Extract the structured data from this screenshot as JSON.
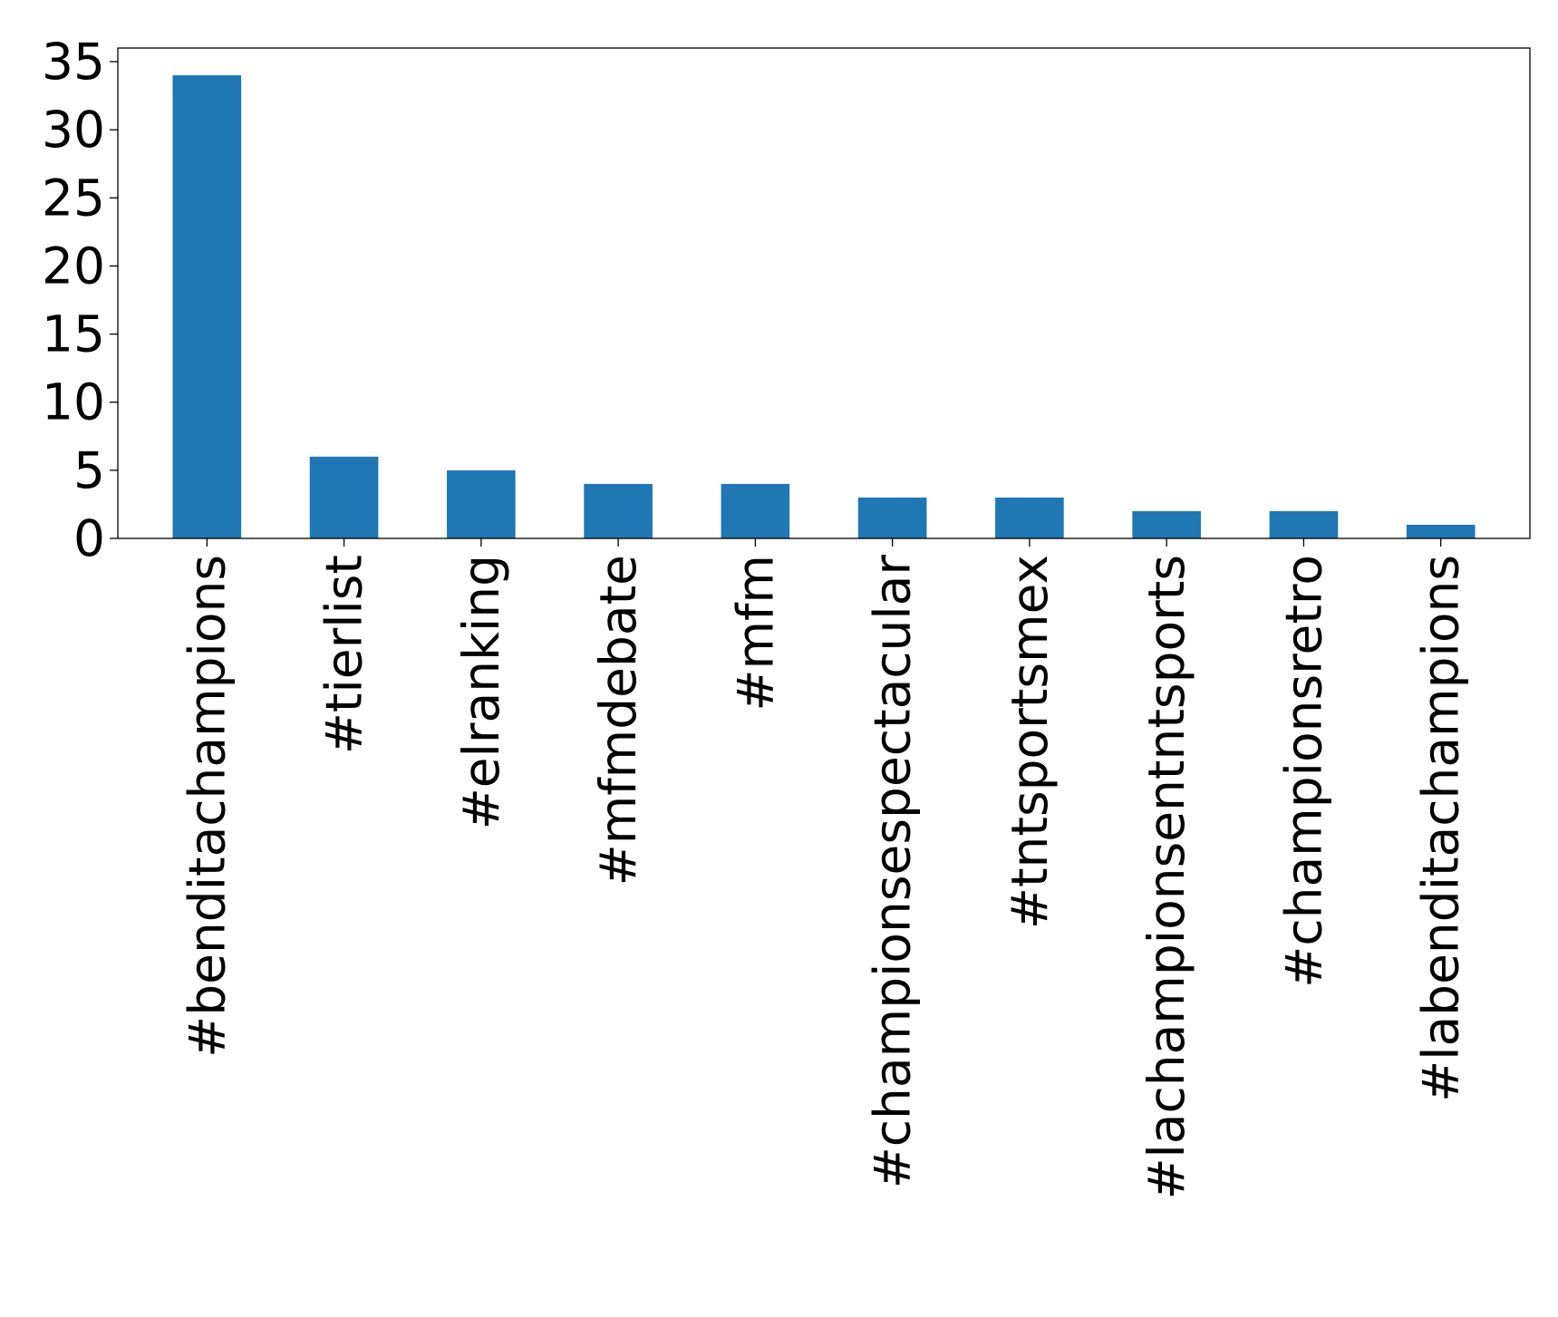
{
  "chart_data": {
    "type": "bar",
    "title": "",
    "xlabel": "",
    "ylabel": "",
    "categories": [
      "#benditachampions",
      "#tierlist",
      "#elranking",
      "#mfmdebate",
      "#mfm",
      "#championsespectacular",
      "#tntsportsmex",
      "#lachampionsentntsports",
      "#championsretro",
      "#labenditachampions"
    ],
    "values": [
      34,
      6,
      5,
      4,
      4,
      3,
      3,
      2,
      2,
      1
    ],
    "ylim": [
      0,
      36
    ],
    "yticks": [
      "0",
      "5",
      "10",
      "15",
      "20",
      "25",
      "30",
      "35"
    ],
    "legend": "none",
    "grid": false,
    "colors": {
      "bar": "#1f77b4",
      "axis": "#000000"
    }
  }
}
